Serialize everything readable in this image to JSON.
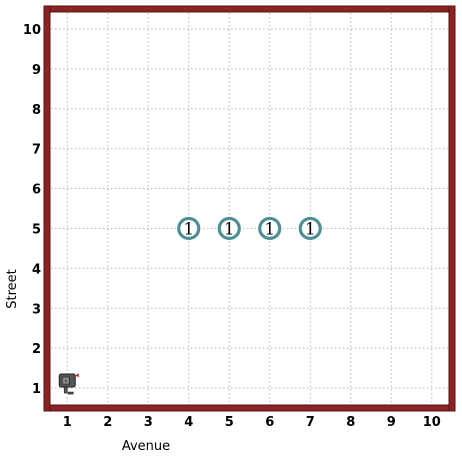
{
  "world": {
    "avenues": 10,
    "streets": 10,
    "grid_visible": true,
    "x_axis_label": "Avenue",
    "y_axis_label": "Street",
    "x_ticks": [
      "1",
      "2",
      "3",
      "4",
      "5",
      "6",
      "7",
      "8",
      "9",
      "10"
    ],
    "y_ticks": [
      "1",
      "2",
      "3",
      "4",
      "5",
      "6",
      "7",
      "8",
      "9",
      "10"
    ]
  },
  "beepers": [
    {
      "avenue": 4,
      "street": 5,
      "count": "1"
    },
    {
      "avenue": 5,
      "street": 5,
      "count": "1"
    },
    {
      "avenue": 6,
      "street": 5,
      "count": "1"
    },
    {
      "avenue": 7,
      "street": 5,
      "count": "1"
    }
  ],
  "robot": {
    "avenue": 1,
    "street": 1,
    "facing": "west",
    "icon": "robot-icon"
  },
  "colors": {
    "wall": "#8b2525",
    "wall_border": "#5a1010",
    "grid": "#b8b8b8",
    "beeper_ring": "#4e8f96",
    "robot_body": "#555555",
    "robot_accent": "#d42020"
  }
}
